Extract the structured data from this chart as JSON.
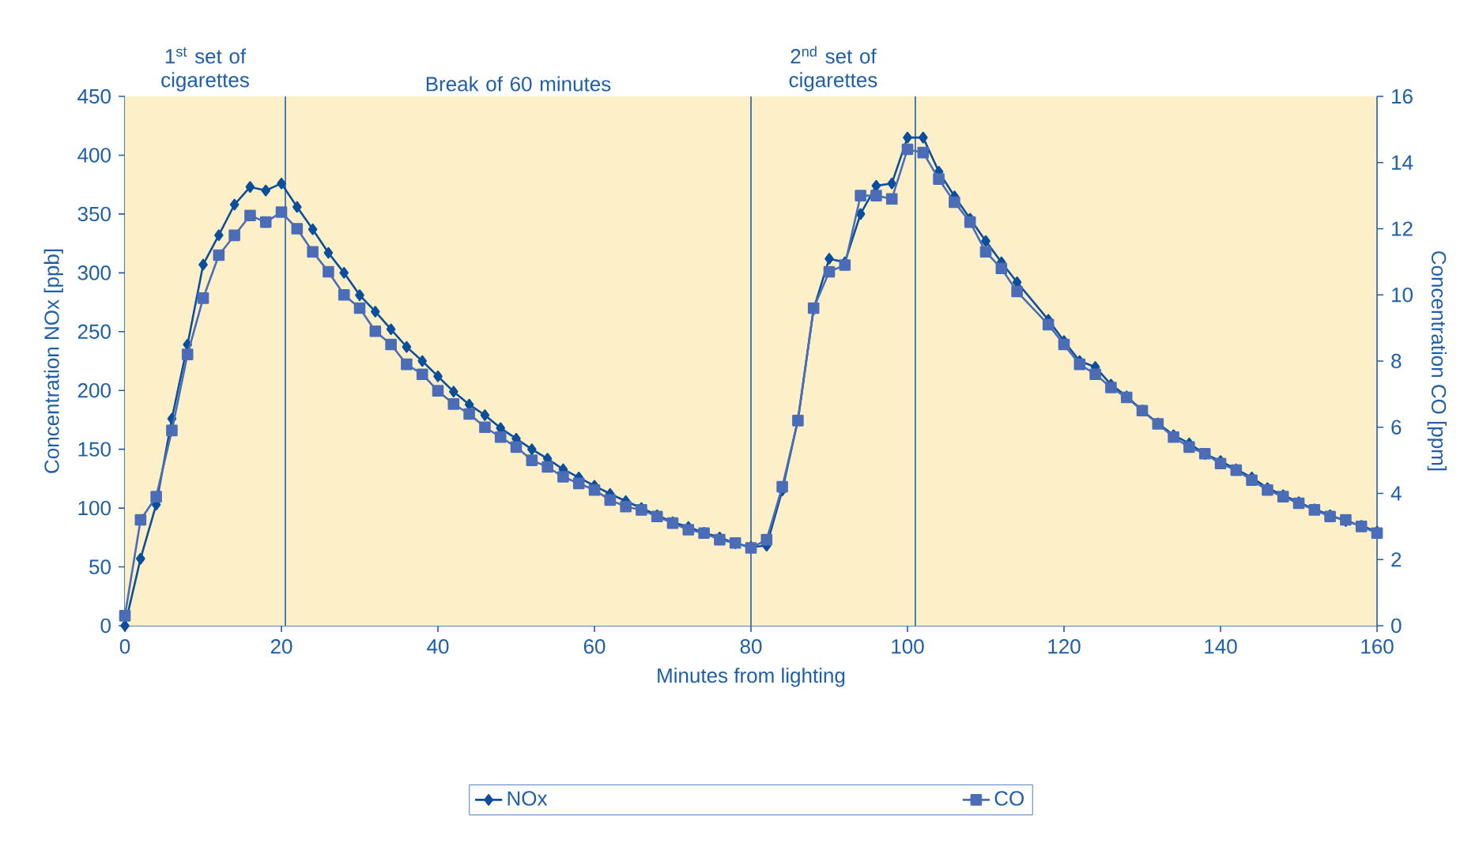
{
  "chart_data": {
    "type": "line",
    "xlabel": "Minutes from lighting",
    "ylabel": "Concentration NOx [ppb]",
    "y2label": "Concentration CO [ppm]",
    "x": [
      0,
      2,
      4,
      6,
      8,
      10,
      12,
      14,
      16,
      18,
      20,
      22,
      24,
      26,
      28,
      30,
      32,
      34,
      36,
      38,
      40,
      42,
      44,
      46,
      48,
      50,
      52,
      54,
      56,
      58,
      60,
      62,
      64,
      66,
      68,
      70,
      72,
      74,
      76,
      78,
      80,
      82,
      84,
      86,
      88,
      90,
      92,
      94,
      96,
      98,
      100,
      102,
      104,
      106,
      108,
      110,
      112,
      114,
      118,
      120,
      122,
      124,
      126,
      128,
      130,
      132,
      134,
      136,
      138,
      140,
      142,
      144,
      146,
      148,
      150,
      152,
      154,
      156,
      158,
      160
    ],
    "series": [
      {
        "name": "NOx",
        "color": "#0b4f9c",
        "marker": "diamond",
        "axis": "y",
        "values": [
          0,
          57,
          103,
          176,
          239,
          307,
          332,
          358,
          373,
          370,
          376,
          356,
          337,
          317,
          300,
          281,
          267,
          252,
          237,
          225,
          212,
          199,
          188,
          179,
          168,
          159,
          150,
          142,
          133,
          126,
          119,
          112,
          106,
          100,
          94,
          88,
          84,
          79,
          75,
          70,
          67,
          68,
          115,
          175,
          269,
          312,
          309,
          350,
          374,
          376,
          415,
          415,
          386,
          365,
          346,
          327,
          309,
          292,
          260,
          242,
          225,
          220,
          205,
          195,
          183,
          172,
          162,
          155,
          146,
          140,
          133,
          126,
          117,
          111,
          105,
          99,
          94,
          89,
          85,
          80
        ]
      },
      {
        "name": "CO",
        "color": "#4b6cb7",
        "marker": "square",
        "axis": "y2",
        "values": [
          0.3,
          3.2,
          3.9,
          5.9,
          8.2,
          9.9,
          11.2,
          11.8,
          12.4,
          12.2,
          12.5,
          12.0,
          11.3,
          10.7,
          10.0,
          9.6,
          8.9,
          8.5,
          7.9,
          7.6,
          7.1,
          6.7,
          6.4,
          6.0,
          5.7,
          5.4,
          5.0,
          4.8,
          4.5,
          4.3,
          4.1,
          3.8,
          3.6,
          3.5,
          3.3,
          3.1,
          2.9,
          2.8,
          2.6,
          2.5,
          2.35,
          2.6,
          4.2,
          6.2,
          9.6,
          10.7,
          10.9,
          13.0,
          13.0,
          12.9,
          14.4,
          14.3,
          13.5,
          12.8,
          12.2,
          11.3,
          10.8,
          10.1,
          9.1,
          8.5,
          7.9,
          7.6,
          7.2,
          6.9,
          6.5,
          6.1,
          5.7,
          5.4,
          5.2,
          4.9,
          4.7,
          4.4,
          4.1,
          3.9,
          3.7,
          3.5,
          3.3,
          3.2,
          3.0,
          2.8
        ]
      }
    ],
    "xlim": [
      0,
      160
    ],
    "xticks": [
      0,
      20,
      40,
      60,
      80,
      100,
      120,
      140,
      160
    ],
    "ylim": [
      0,
      450
    ],
    "yticks": [
      0,
      50,
      100,
      150,
      200,
      250,
      300,
      350,
      400,
      450
    ],
    "y2lim": [
      0,
      16
    ],
    "y2ticks": [
      0,
      2,
      4,
      6,
      8,
      10,
      12,
      14,
      16
    ],
    "ref_lines": [
      {
        "axis": "x",
        "value": 20.5
      },
      {
        "axis": "x",
        "value": 80
      },
      {
        "axis": "x",
        "value": 101
      }
    ],
    "annotations": [
      "1$^{st}$ set of cigarettes",
      "Break of 60 minutes",
      "2$^{nd}$ set of cigarettes"
    ],
    "legend": "bottom",
    "line_style": "solid"
  }
}
